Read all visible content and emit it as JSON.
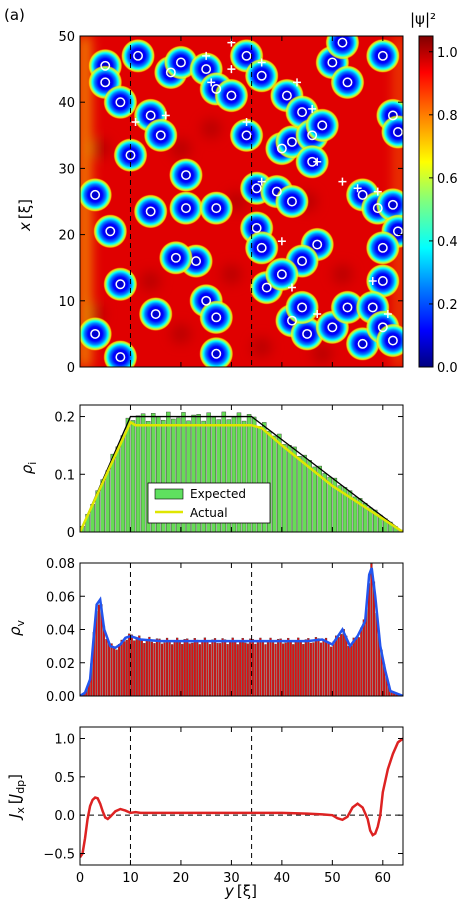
{
  "panel_label": "(a)",
  "chart_data": [
    {
      "type": "heatmap",
      "name": "order-parameter-map",
      "xlabel_italic": "y",
      "xlabel_unit": "[ξ]",
      "ylabel_italic": "x",
      "ylabel_unit": "[ξ]",
      "xlim": [
        0,
        64
      ],
      "ylim": [
        0,
        50
      ],
      "yticks": [
        0,
        10,
        20,
        30,
        40,
        50
      ],
      "dashed_lines_y": [
        10,
        34
      ],
      "colorbar": {
        "label": "|ψ|²",
        "range": [
          0,
          1.05
        ],
        "ticks": [
          "0.0",
          "0.2",
          "0.4",
          "0.6",
          "0.8",
          "1.0"
        ],
        "tick_values": [
          0,
          0.2,
          0.4,
          0.6,
          0.8,
          1.0
        ],
        "colors": [
          "#00007f",
          "#0000ff",
          "#007fff",
          "#00ffff",
          "#7fff7f",
          "#ffff00",
          "#ff7f00",
          "#ff0000",
          "#7f0000"
        ]
      },
      "vortices": [
        [
          5,
          45.5
        ],
        [
          5,
          43
        ],
        [
          10,
          32
        ],
        [
          14,
          38
        ],
        [
          16,
          35
        ],
        [
          18,
          44.5
        ],
        [
          20,
          46
        ],
        [
          21,
          29
        ],
        [
          25,
          45
        ],
        [
          27,
          42
        ],
        [
          11.5,
          47
        ],
        [
          30,
          41
        ],
        [
          33,
          35
        ],
        [
          33,
          47
        ],
        [
          35,
          27
        ],
        [
          35,
          21
        ],
        [
          36,
          44
        ],
        [
          39,
          26.5
        ],
        [
          40,
          33
        ],
        [
          42,
          34
        ],
        [
          41,
          41
        ],
        [
          44,
          38.5
        ],
        [
          46,
          35
        ],
        [
          46,
          31
        ],
        [
          48,
          36.5
        ],
        [
          50,
          46
        ],
        [
          52,
          49
        ],
        [
          53,
          43
        ],
        [
          56,
          26
        ],
        [
          59,
          24
        ],
        [
          60,
          47
        ],
        [
          62,
          38
        ],
        [
          63,
          35.5
        ],
        [
          62,
          24.5
        ],
        [
          63,
          20.5
        ],
        [
          60,
          18
        ],
        [
          47,
          18.5
        ],
        [
          44,
          16
        ],
        [
          42,
          7
        ],
        [
          45,
          5
        ],
        [
          44,
          9
        ],
        [
          50,
          6
        ],
        [
          53,
          9
        ],
        [
          56,
          3.5
        ],
        [
          60,
          13
        ],
        [
          58,
          9
        ],
        [
          60,
          6
        ],
        [
          62,
          4
        ],
        [
          37,
          12
        ],
        [
          36,
          18
        ],
        [
          25,
          10
        ],
        [
          27,
          7.5
        ],
        [
          27,
          2
        ],
        [
          23,
          16
        ],
        [
          19,
          16.5
        ],
        [
          15,
          8
        ],
        [
          8,
          12.5
        ],
        [
          6,
          20.5
        ],
        [
          3,
          5
        ],
        [
          8,
          1.5
        ],
        [
          14,
          23.5
        ],
        [
          21,
          24
        ],
        [
          27,
          24
        ],
        [
          3,
          26
        ],
        [
          42,
          25
        ],
        [
          40,
          14
        ],
        [
          8,
          40
        ]
      ],
      "plus_marks": [
        [
          30,
          49
        ],
        [
          25,
          47
        ],
        [
          26,
          43
        ],
        [
          30,
          45
        ],
        [
          43,
          43
        ],
        [
          46,
          39
        ],
        [
          47,
          31
        ],
        [
          52,
          28
        ],
        [
          55,
          27
        ],
        [
          59,
          26.5
        ],
        [
          11,
          37
        ],
        [
          17,
          38
        ],
        [
          33,
          37
        ],
        [
          36,
          28
        ],
        [
          40,
          19
        ],
        [
          42,
          12
        ],
        [
          47,
          8
        ],
        [
          58,
          13
        ],
        [
          61,
          8
        ],
        [
          36,
          46
        ]
      ]
    },
    {
      "type": "bar",
      "name": "rho-i",
      "ylabel_italic": "ρ",
      "ylabel_sub": "i",
      "xlim": [
        0,
        64
      ],
      "ylim": [
        0,
        0.22
      ],
      "yticks": [
        0,
        0.1,
        0.2
      ],
      "ytick_labels": [
        "0",
        "0.1",
        "0.2"
      ],
      "legend": [
        "Expected",
        "Actual"
      ],
      "legend_position": "center",
      "expected_profile": [
        [
          0,
          0
        ],
        [
          10,
          0.2
        ],
        [
          34,
          0.2
        ],
        [
          64,
          0
        ]
      ],
      "actual_profile": [
        [
          0,
          0
        ],
        [
          10,
          0.19
        ],
        [
          11,
          0.185
        ],
        [
          34,
          0.185
        ],
        [
          36,
          0.18
        ],
        [
          40,
          0.15
        ],
        [
          50,
          0.08
        ],
        [
          64,
          0
        ]
      ]
    },
    {
      "type": "bar",
      "name": "rho-v",
      "ylabel_italic": "ρ",
      "ylabel_sub": "v",
      "xlim": [
        0,
        64
      ],
      "ylim": [
        0,
        0.08
      ],
      "yticks": [
        0,
        0.02,
        0.04,
        0.06,
        0.08
      ],
      "ytick_labels": [
        "0.00",
        "0.02",
        "0.04",
        "0.06",
        "0.08"
      ],
      "dashed_lines_x": [
        10,
        34
      ],
      "profile": [
        [
          0,
          0
        ],
        [
          1,
          0.002
        ],
        [
          2,
          0.01
        ],
        [
          2.7,
          0.035
        ],
        [
          3.3,
          0.055
        ],
        [
          4,
          0.058
        ],
        [
          4.8,
          0.04
        ],
        [
          6,
          0.03
        ],
        [
          7,
          0.029
        ],
        [
          8,
          0.031
        ],
        [
          9,
          0.035
        ],
        [
          10,
          0.036
        ],
        [
          12,
          0.034
        ],
        [
          16,
          0.033
        ],
        [
          24,
          0.033
        ],
        [
          34,
          0.033
        ],
        [
          45,
          0.033
        ],
        [
          48,
          0.034
        ],
        [
          50,
          0.031
        ],
        [
          52,
          0.04
        ],
        [
          53.5,
          0.03
        ],
        [
          55,
          0.036
        ],
        [
          56.5,
          0.045
        ],
        [
          57.3,
          0.073
        ],
        [
          57.8,
          0.077
        ],
        [
          58.5,
          0.06
        ],
        [
          59.5,
          0.03
        ],
        [
          60.5,
          0.015
        ],
        [
          61.5,
          0.003
        ],
        [
          64,
          0
        ]
      ]
    },
    {
      "type": "line",
      "name": "current-density",
      "xlabel_italic": "y",
      "xlabel_unit": "[ξ]",
      "ylabel_italic": "J",
      "ylabel_sub": "x",
      "ylabel_unit_italic": "J",
      "ylabel_unit_sub": "dp",
      "xlim": [
        0,
        64
      ],
      "ylim": [
        -0.65,
        1.15
      ],
      "xticks": [
        0,
        10,
        20,
        30,
        40,
        50,
        60
      ],
      "yticks": [
        -0.5,
        0,
        0.5,
        1.0
      ],
      "ytick_labels": [
        "−0.5",
        "0.0",
        "0.5",
        "1.0"
      ],
      "dashed_lines_x": [
        10,
        34
      ],
      "zero_line": true,
      "x": [
        0,
        0.5,
        1,
        1.5,
        2,
        2.5,
        3,
        3.5,
        4,
        4.5,
        5,
        5.5,
        6,
        7,
        8,
        9,
        10,
        11,
        12,
        14,
        20,
        30,
        40,
        45,
        48,
        50,
        51,
        52,
        53,
        54,
        55,
        56,
        57,
        57.5,
        58,
        58.5,
        59,
        59.5,
        60,
        61,
        62,
        63,
        64
      ],
      "y": [
        -0.55,
        -0.5,
        -0.3,
        -0.05,
        0.12,
        0.2,
        0.23,
        0.22,
        0.15,
        0.05,
        -0.03,
        -0.05,
        -0.02,
        0.05,
        0.08,
        0.06,
        0.03,
        0.04,
        0.03,
        0.03,
        0.03,
        0.03,
        0.03,
        0.02,
        0.01,
        0.0,
        -0.04,
        -0.06,
        -0.02,
        0.1,
        0.15,
        0.1,
        -0.05,
        -0.2,
        -0.26,
        -0.24,
        -0.15,
        0.0,
        0.3,
        0.6,
        0.8,
        0.95,
        1.0
      ]
    }
  ]
}
